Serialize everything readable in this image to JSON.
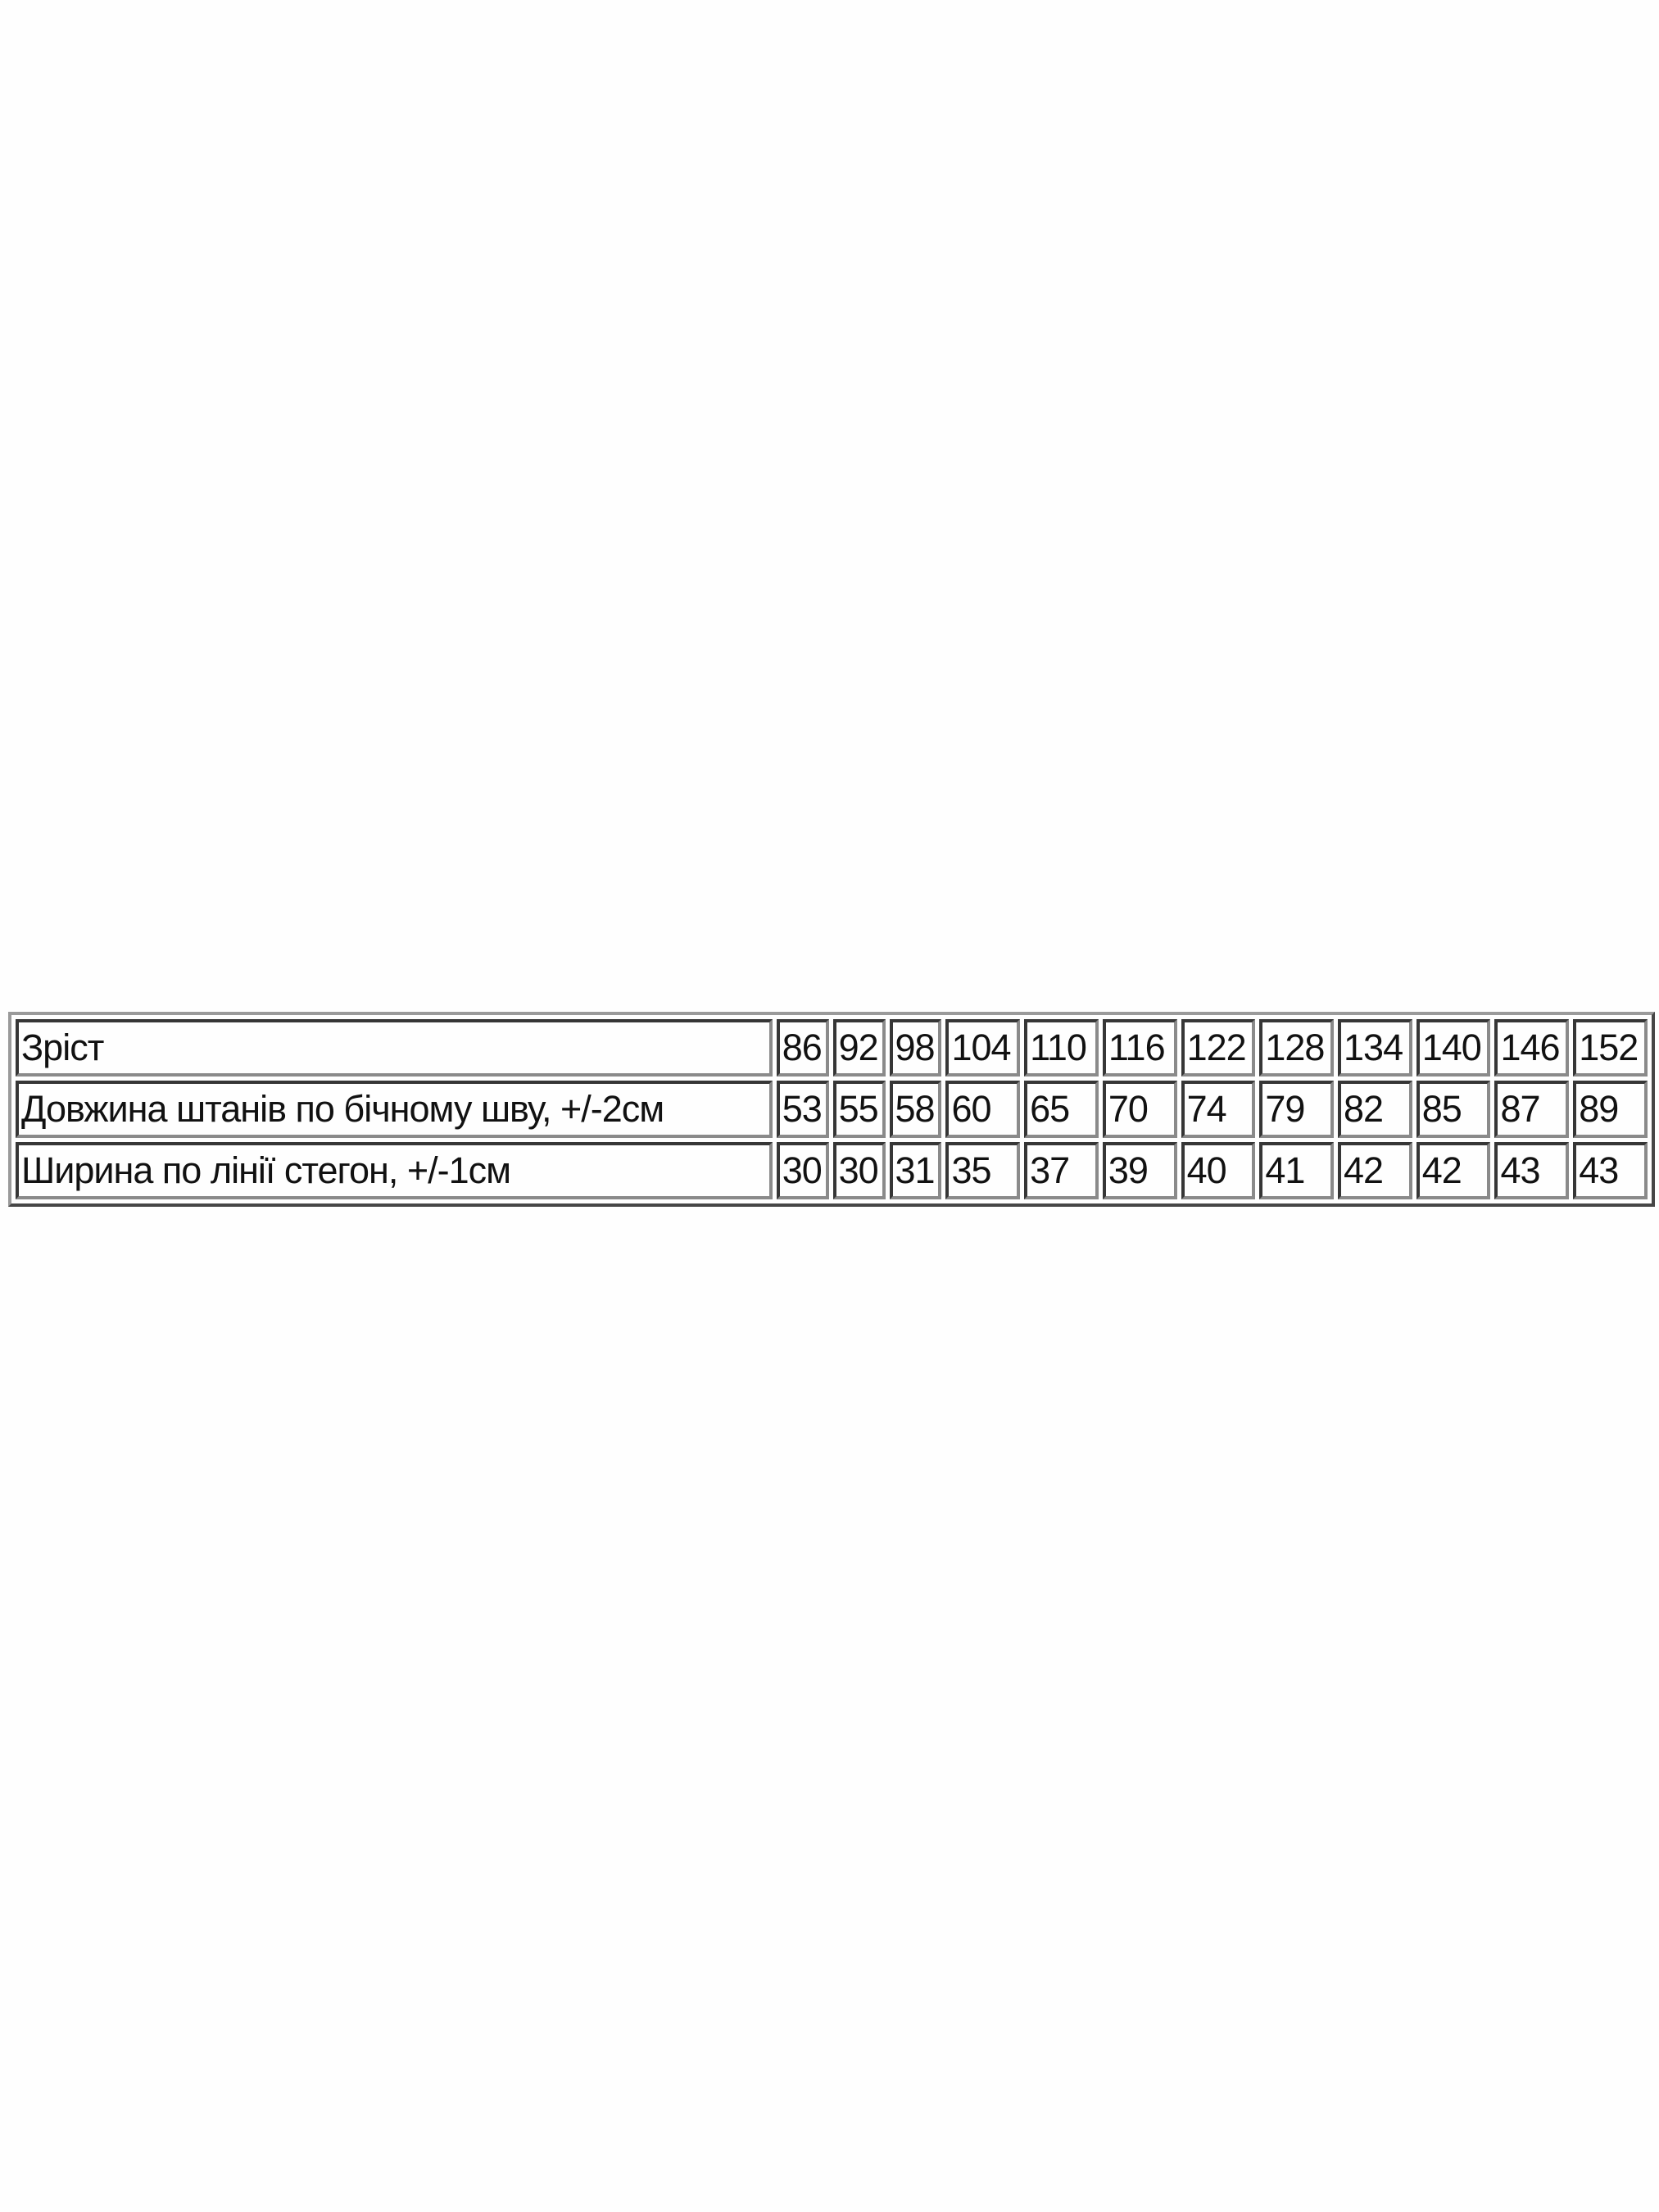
{
  "size_table": {
    "rows": [
      {
        "label": "Зріст",
        "values": [
          "86",
          "92",
          "98",
          "104",
          "110",
          "116",
          "122",
          "128",
          "134",
          "140",
          "146",
          "152"
        ]
      },
      {
        "label": "Довжина штанів по бічному шву, +/-2см",
        "values": [
          "53",
          "55",
          "58",
          "60",
          "65",
          "70",
          "74",
          "79",
          "82",
          "85",
          "87",
          "89"
        ]
      },
      {
        "label": "Ширина по лінії стегон, +/-1см",
        "values": [
          "30",
          "30",
          "31",
          "35",
          "37",
          "39",
          "40",
          "41",
          "42",
          "42",
          "43",
          "43"
        ]
      }
    ]
  }
}
